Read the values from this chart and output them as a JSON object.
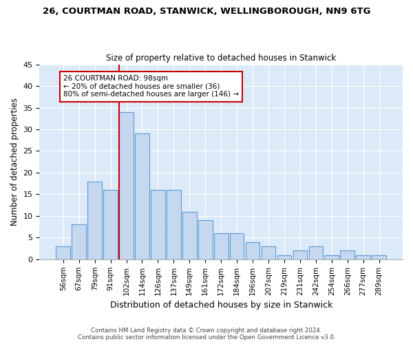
{
  "title1": "26, COURTMAN ROAD, STANWICK, WELLINGBOROUGH, NN9 6TG",
  "title2": "Size of property relative to detached houses in Stanwick",
  "xlabel": "Distribution of detached houses by size in Stanwick",
  "ylabel": "Number of detached properties",
  "footer1": "Contains HM Land Registry data © Crown copyright and database right 2024.",
  "footer2": "Contains public sector information licensed under the Open Government Licence v3.0.",
  "bin_labels": [
    "56sqm",
    "67sqm",
    "79sqm",
    "91sqm",
    "102sqm",
    "114sqm",
    "126sqm",
    "137sqm",
    "149sqm",
    "161sqm",
    "172sqm",
    "184sqm",
    "196sqm",
    "207sqm",
    "219sqm",
    "231sqm",
    "242sqm",
    "254sqm",
    "266sqm",
    "277sqm",
    "289sqm"
  ],
  "values": [
    3,
    8,
    18,
    16,
    34,
    29,
    16,
    16,
    11,
    9,
    6,
    6,
    4,
    3,
    1,
    2,
    3,
    1,
    2,
    1,
    1
  ],
  "bar_color": "#c5d8f0",
  "bar_edge_color": "#5b9bd5",
  "annotation_title": "26 COURTMAN ROAD: 98sqm",
  "annotation_line1": "← 20% of detached houses are smaller (36)",
  "annotation_line2": "80% of semi-detached houses are larger (146) →",
  "annotation_box_color": "#ffffff",
  "annotation_box_edge": "#cc0000",
  "vline_color": "#cc0000",
  "ylim": [
    0,
    45
  ],
  "yticks": [
    0,
    5,
    10,
    15,
    20,
    25,
    30,
    35,
    40,
    45
  ],
  "bg_color": "#dce9f8",
  "grid_color": "#ffffff",
  "fig_bg_color": "#ffffff"
}
